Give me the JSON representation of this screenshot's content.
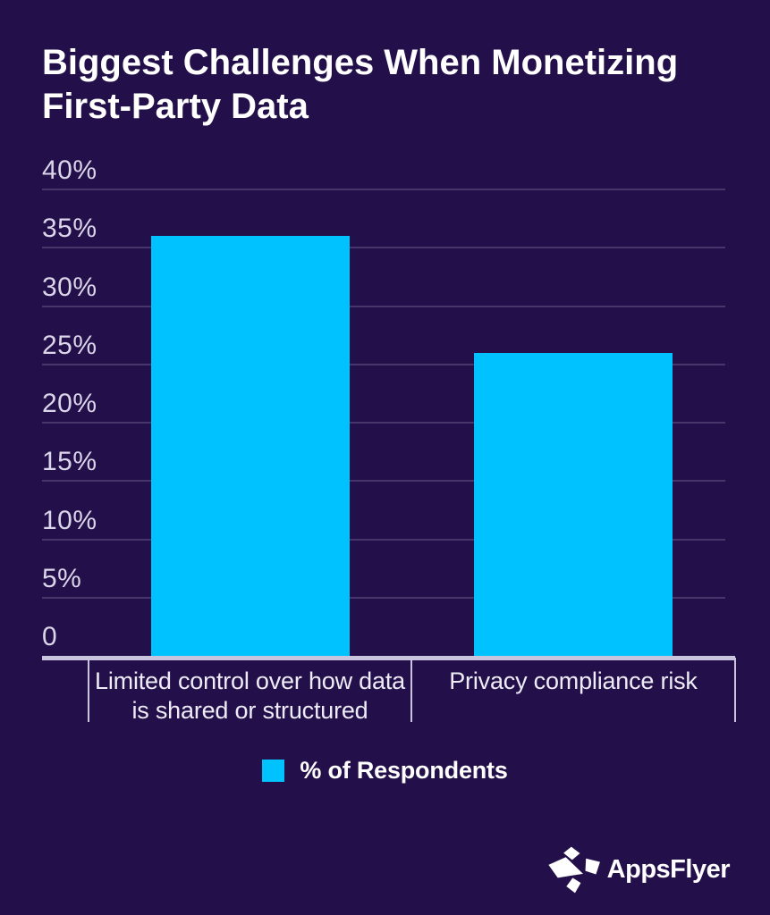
{
  "colors": {
    "background": "#23104A",
    "bar": "#00C2FF",
    "gridline": "#473669",
    "axis": "#CBC4DE",
    "y_label_text": "#DAD5E9",
    "category_text": "#EEECF6",
    "title_text": "#FFFFFF"
  },
  "title": {
    "line1": "Biggest Challenges When Monetizing",
    "line2": "First-Party Data"
  },
  "legend": {
    "label": "% of Respondents",
    "swatch_color": "#00C2FF"
  },
  "logo": {
    "text": "AppsFlyer"
  },
  "chart_data": {
    "type": "bar",
    "title": "Biggest Challenges When Monetizing First-Party Data",
    "categories": [
      "Limited control over how data is shared or structured",
      "Privacy compliance risk"
    ],
    "category_display_lines": [
      [
        "Limited control over how data",
        "is shared or structured"
      ],
      [
        "Privacy compliance risk"
      ]
    ],
    "series": [
      {
        "name": "% of Respondents",
        "values": [
          36,
          26
        ]
      }
    ],
    "xlabel": "",
    "ylabel": "",
    "ylim": [
      0,
      40
    ],
    "ytick_values": [
      40,
      35,
      30,
      25,
      20,
      15,
      10,
      5,
      0
    ],
    "ytick_labels": [
      "40%",
      "35%",
      "30%",
      "25%",
      "20%",
      "15%",
      "10%",
      "5%",
      "0"
    ],
    "grid": true,
    "legend_position": "bottom"
  }
}
